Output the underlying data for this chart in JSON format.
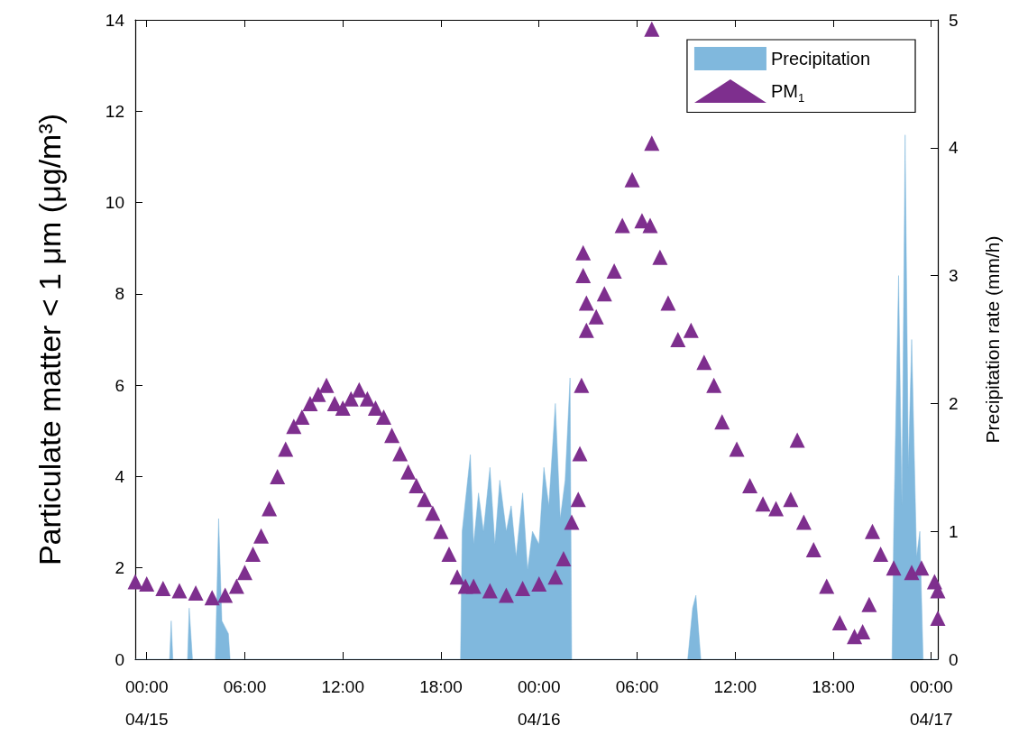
{
  "chart_data": {
    "type": "scatter",
    "xlim": [
      "--04-14T23:18",
      "--04-17T00:24"
    ],
    "xticks": [
      {
        "value": "--04-15T00:00",
        "label": "00:00\n04/15"
      },
      {
        "value": "--04-15T06:00",
        "label": "06:00"
      },
      {
        "value": "--04-15T12:00",
        "label": "12:00"
      },
      {
        "value": "--04-15T18:00",
        "label": "18:00"
      },
      {
        "value": "--04-16T00:00",
        "label": "00:00\n04/16"
      },
      {
        "value": "--04-16T06:00",
        "label": "06:00"
      },
      {
        "value": "--04-16T12:00",
        "label": "12:00"
      },
      {
        "value": "--04-16T18:00",
        "label": "18:00"
      },
      {
        "value": "--04-17T00:00",
        "label": "00:00\n04/17"
      }
    ],
    "ylabel": "Particulate matter < 1 μm (μg/m³)",
    "y2label": "Precipitation rate (mm/h)",
    "ylim": [
      0,
      14
    ],
    "yticks": [
      0,
      2,
      4,
      6,
      8,
      10,
      12,
      14
    ],
    "y2lim": [
      0,
      5
    ],
    "y2ticks": [
      0,
      1,
      2,
      3,
      4,
      5
    ],
    "grid": false,
    "legend": "top right",
    "series": [
      {
        "name": "Precipitation",
        "type": "area",
        "axis": "y2",
        "color": "#80b8dd",
        "x": [
          "--04-14T23:18",
          "--04-15T01:24",
          "--04-15T01:30",
          "--04-15T01:36",
          "--04-15T02:30",
          "--04-15T02:36",
          "--04-15T02:48",
          "--04-15T04:12",
          "--04-15T04:24",
          "--04-15T04:36",
          "--04-15T05:00",
          "--04-15T05:06",
          "--04-15T19:12",
          "--04-15T19:18",
          "--04-15T19:48",
          "--04-15T20:00",
          "--04-15T20:18",
          "--04-15T20:36",
          "--04-15T21:00",
          "--04-15T21:18",
          "--04-15T21:36",
          "--04-15T22:00",
          "--04-15T22:18",
          "--04-15T22:36",
          "--04-15T23:00",
          "--04-15T23:18",
          "--04-15T23:36",
          "--04-16T00:00",
          "--04-16T00:18",
          "--04-16T00:36",
          "--04-16T01:00",
          "--04-16T01:18",
          "--04-16T01:36",
          "--04-16T01:54",
          "--04-16T02:00",
          "--04-16T09:06",
          "--04-16T09:24",
          "--04-16T09:36",
          "--04-16T09:54",
          "--04-16T21:36",
          "--04-16T21:42",
          "--04-16T22:00",
          "--04-16T22:12",
          "--04-16T22:24",
          "--04-16T22:36",
          "--04-16T22:48",
          "--04-16T23:06",
          "--04-16T23:18",
          "--04-16T23:30",
          "--04-17T00:24"
        ],
        "values": [
          0,
          0,
          0.3,
          0,
          0,
          0.4,
          0,
          0,
          1.1,
          0.3,
          0.2,
          0,
          0,
          1.0,
          1.6,
          0.9,
          1.3,
          1.0,
          1.5,
          0.9,
          1.4,
          1.0,
          1.2,
          0.8,
          1.3,
          0.7,
          1.0,
          0.9,
          1.5,
          1.2,
          2.0,
          1.1,
          1.4,
          2.2,
          0,
          0,
          0.4,
          0.5,
          0,
          0,
          1.0,
          3.0,
          1.2,
          4.1,
          1.5,
          2.5,
          0.8,
          1.0,
          0,
          0
        ]
      },
      {
        "name": "PM$_{1}$",
        "color": "#7e2f8e",
        "marker": "triangle",
        "x": [
          "--04-14T23:18",
          "--04-15T00:00",
          "--04-15T01:00",
          "--04-15T02:00",
          "--04-15T03:00",
          "--04-15T04:00",
          "--04-15T04:48",
          "--04-15T05:30",
          "--04-15T06:00",
          "--04-15T06:30",
          "--04-15T07:00",
          "--04-15T07:30",
          "--04-15T08:00",
          "--04-15T08:30",
          "--04-15T09:00",
          "--04-15T09:30",
          "--04-15T10:00",
          "--04-15T10:30",
          "--04-15T11:00",
          "--04-15T11:30",
          "--04-15T12:00",
          "--04-15T12:30",
          "--04-15T13:00",
          "--04-15T13:30",
          "--04-15T14:00",
          "--04-15T14:30",
          "--04-15T15:00",
          "--04-15T15:30",
          "--04-15T16:00",
          "--04-15T16:30",
          "--04-15T17:00",
          "--04-15T17:30",
          "--04-15T18:00",
          "--04-15T18:30",
          "--04-15T19:00",
          "--04-15T19:30",
          "--04-15T20:00",
          "--04-15T21:00",
          "--04-15T22:00",
          "--04-15T23:00",
          "--04-16T00:00",
          "--04-16T01:00",
          "--04-16T01:30",
          "--04-16T02:00",
          "--04-16T02:24",
          "--04-16T02:30",
          "--04-16T02:36",
          "--04-16T02:42",
          "--04-16T02:42",
          "--04-16T02:54",
          "--04-16T02:54",
          "--04-16T03:30",
          "--04-16T04:00",
          "--04-16T04:36",
          "--04-16T05:06",
          "--04-16T05:42",
          "--04-16T06:18",
          "--04-16T06:48",
          "--04-16T06:54",
          "--04-16T06:54",
          "--04-16T07:24",
          "--04-16T07:54",
          "--04-16T08:30",
          "--04-16T09:18",
          "--04-16T10:06",
          "--04-16T10:42",
          "--04-16T11:12",
          "--04-16T12:06",
          "--04-16T12:54",
          "--04-16T13:42",
          "--04-16T14:30",
          "--04-16T15:24",
          "--04-16T15:48",
          "--04-16T16:12",
          "--04-16T16:48",
          "--04-16T17:36",
          "--04-16T18:24",
          "--04-16T19:18",
          "--04-16T19:48",
          "--04-16T20:12",
          "--04-16T20:24",
          "--04-16T20:54",
          "--04-16T21:42",
          "--04-16T22:48",
          "--04-16T23:24",
          "--04-17T00:12",
          "--04-17T00:24",
          "--04-17T00:24"
        ],
        "values": [
          1.7,
          1.65,
          1.55,
          1.5,
          1.45,
          1.35,
          1.4,
          1.6,
          1.9,
          2.3,
          2.7,
          3.3,
          4.0,
          4.6,
          5.1,
          5.3,
          5.6,
          5.8,
          6.0,
          5.6,
          5.5,
          5.7,
          5.9,
          5.7,
          5.5,
          5.3,
          4.9,
          4.5,
          4.1,
          3.8,
          3.5,
          3.2,
          2.8,
          2.3,
          1.8,
          1.6,
          1.6,
          1.5,
          1.4,
          1.55,
          1.65,
          1.8,
          2.2,
          3.0,
          3.5,
          4.5,
          6.0,
          8.9,
          8.4,
          7.2,
          7.8,
          7.5,
          8.0,
          8.5,
          9.5,
          10.5,
          9.6,
          9.5,
          13.8,
          11.3,
          8.8,
          7.8,
          7.0,
          7.2,
          6.5,
          6.0,
          5.2,
          4.6,
          3.8,
          3.4,
          3.3,
          3.5,
          4.8,
          3.0,
          2.4,
          1.6,
          0.8,
          0.5,
          0.6,
          1.2,
          2.8,
          2.3,
          2.0,
          1.9,
          2.0,
          1.7,
          1.5,
          0.9
        ]
      }
    ]
  }
}
